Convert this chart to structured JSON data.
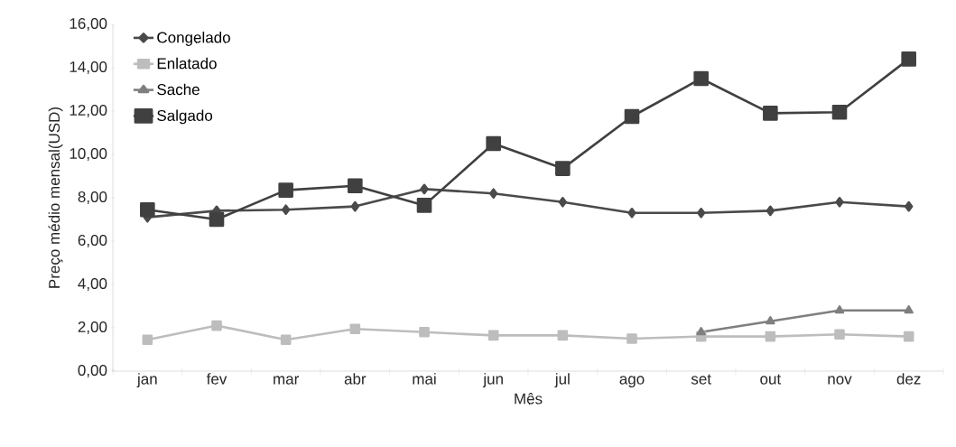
{
  "chart_data": {
    "type": "line",
    "xlabel": "Mês",
    "ylabel": "Preço médio mensal(USD)",
    "categories": [
      "jan",
      "fev",
      "mar",
      "abr",
      "mai",
      "jun",
      "jul",
      "ago",
      "set",
      "out",
      "nov",
      "dez"
    ],
    "series": [
      {
        "name": "Congelado",
        "color": "#4a4a4a",
        "marker": "diamond",
        "values": [
          7.1,
          7.4,
          7.45,
          7.6,
          8.4,
          8.2,
          7.8,
          7.3,
          7.3,
          7.4,
          7.8,
          7.6
        ]
      },
      {
        "name": "Enlatado",
        "color": "#bdbdbd",
        "marker": "square",
        "values": [
          1.45,
          2.1,
          1.45,
          1.95,
          1.8,
          1.65,
          1.65,
          1.5,
          1.6,
          1.6,
          1.7,
          1.6
        ]
      },
      {
        "name": "Sache",
        "color": "#7f7f7f",
        "marker": "triangle",
        "values": [
          null,
          null,
          null,
          null,
          null,
          null,
          null,
          null,
          1.8,
          2.3,
          2.8,
          2.8
        ]
      },
      {
        "name": "Salgado",
        "color": "#404040",
        "marker": "square",
        "values": [
          7.45,
          7.0,
          8.35,
          8.55,
          7.65,
          10.5,
          9.35,
          11.75,
          13.5,
          11.9,
          11.95,
          14.4
        ]
      }
    ],
    "ylim": [
      0,
      16
    ],
    "yticks": [
      {
        "value": 0,
        "label": "0,00"
      },
      {
        "value": 2,
        "label": "2,00"
      },
      {
        "value": 4,
        "label": "4,00"
      },
      {
        "value": 6,
        "label": "6,00"
      },
      {
        "value": 8,
        "label": "8,00"
      },
      {
        "value": 10,
        "label": "10,00"
      },
      {
        "value": 12,
        "label": "12,00"
      },
      {
        "value": 14,
        "label": "14,00"
      },
      {
        "value": 16,
        "label": "16,00"
      }
    ],
    "grid": false,
    "legend": "top left",
    "line_style": "solid"
  }
}
